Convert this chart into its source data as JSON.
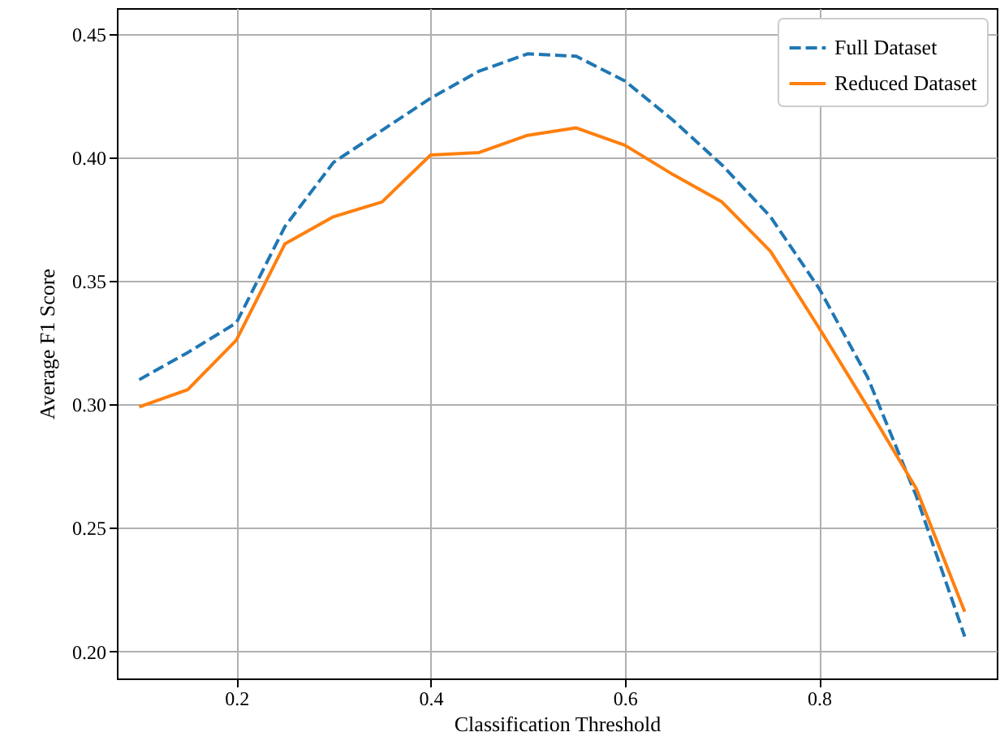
{
  "chart_data": {
    "type": "line",
    "xlabel": "Classification Threshold",
    "ylabel": "Average F1 Score",
    "x": [
      0.1,
      0.15,
      0.2,
      0.25,
      0.3,
      0.35,
      0.4,
      0.45,
      0.5,
      0.55,
      0.6,
      0.65,
      0.7,
      0.75,
      0.8,
      0.85,
      0.9,
      0.95
    ],
    "series": [
      {
        "name": "Full Dataset",
        "color": "#1f77b4",
        "line_style": "dashed",
        "values": [
          0.31,
          0.321,
          0.333,
          0.372,
          0.398,
          0.411,
          0.424,
          0.435,
          0.442,
          0.441,
          0.431,
          0.415,
          0.397,
          0.376,
          0.347,
          0.311,
          0.263,
          0.206
        ]
      },
      {
        "name": "Reduced Dataset",
        "color": "#ff7f0e",
        "line_style": "solid",
        "values": [
          0.299,
          0.306,
          0.326,
          0.365,
          0.376,
          0.382,
          0.401,
          0.402,
          0.409,
          0.412,
          0.405,
          0.393,
          0.382,
          0.362,
          0.331,
          0.299,
          0.266,
          0.216
        ]
      }
    ],
    "xlim": [
      0.077,
      0.983
    ],
    "ylim": [
      0.189,
      0.4605
    ],
    "xticks": [
      0.2,
      0.4,
      0.6,
      0.8
    ],
    "yticks": [
      {
        "value": 0.2,
        "label": "0.20"
      },
      0.25,
      {
        "value": 0.3,
        "label": "0.30"
      },
      0.35,
      {
        "value": 0.4,
        "label": "0.40"
      },
      0.45
    ],
    "grid": true,
    "legend": "top right",
    "marker": "none"
  }
}
